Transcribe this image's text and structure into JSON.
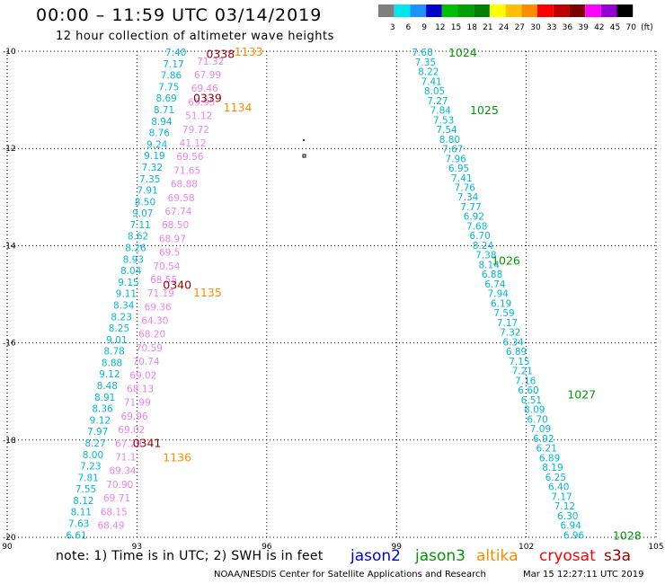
{
  "header": {
    "title": "00:00 – 11:59 UTC 03/14/2019",
    "subtitle": "12 hour collection of altimeter wave heights"
  },
  "legend": {
    "colors": [
      "#7f7f7f",
      "#00e5ee",
      "#1e90ff",
      "#0000cd",
      "#00c000",
      "#00a000",
      "#008000",
      "#ffff00",
      "#ffc000",
      "#ff8c00",
      "#ff0000",
      "#c00000",
      "#800000",
      "#ff00ff",
      "#9400d3",
      "#000000"
    ],
    "labels": [
      "3",
      "6",
      "9",
      "12",
      "15",
      "18",
      "21",
      "24",
      "27",
      "30",
      "33",
      "36",
      "39",
      "42",
      "45",
      "70",
      "(ft)"
    ]
  },
  "axes": {
    "lat_ticks": [
      "-10",
      "-12",
      "-14",
      "-16",
      "-18",
      "-20"
    ],
    "lon_ticks": [
      "90",
      "93",
      "96",
      "99",
      "102",
      "105"
    ]
  },
  "footer": {
    "note": "note:  1) Time is in UTC;  2) SWH is in feet",
    "satellites": [
      {
        "name": "jason2",
        "color": "#0000dd"
      },
      {
        "name": "jason3",
        "color": "#009900"
      },
      {
        "name": "altika",
        "color": "#ff8c00"
      },
      {
        "name": "cryosat",
        "color": "#ff0000"
      },
      {
        "name": "s3a",
        "color": "#990000"
      }
    ],
    "credit": "NOAA/NESDIS Center for Satellite Applications and Research",
    "timestamp": "Mar 15 12:27:11 UTC 2019"
  },
  "map_extent": {
    "lon_min": 90,
    "lon_max": 105,
    "lat_min": -20,
    "lat_max": -10
  },
  "tracks": [
    {
      "satellite": "s3a",
      "color": "#00b7d8",
      "values": [
        "7.40",
        "7.17",
        "7.86",
        "7.75",
        "8.69",
        "8.71",
        "8.94",
        "8.76",
        "9.24",
        "9.19",
        "7.32",
        "7.35",
        "7.91",
        "8.50",
        "9.07",
        "7.11",
        "8.62",
        "8.26",
        "8.93",
        "8.04",
        "9.15",
        "9.11",
        "8.34",
        "8.23",
        "8.25",
        "9.01",
        "8.78",
        "8.88",
        "9.12",
        "8.48",
        "8.91",
        "8.36",
        "9.12",
        "7.97",
        "8.27",
        "8.00",
        "7.23",
        "7.81",
        "7.55",
        "8.12",
        "8.11",
        "7.63",
        "6.61"
      ],
      "start": {
        "lon": 93.9,
        "lat": -10.02
      },
      "end": {
        "lon": 91.6,
        "lat": -19.95
      }
    },
    {
      "satellite": "cryosat",
      "color": "#ee82ee",
      "values": [
        "71.32",
        "67.99",
        "69.46",
        "69.95",
        "51.12",
        "79.72",
        "41.12",
        "69.56",
        "71.65",
        "68.88",
        "69.58",
        "67.74",
        "68.50",
        "68.97",
        "69.5",
        "70.54",
        "68.55",
        "71.19",
        "69.36",
        "64.30",
        "68.20",
        "70.59",
        "70.74",
        "69.02",
        "68.13",
        "71.99",
        "69.96",
        "69.02",
        "67.29",
        "71.1",
        "69.34",
        "70.90",
        "69.71",
        "68.15",
        "68.49"
      ],
      "start": {
        "lon": 94.7,
        "lat": -10.2
      },
      "end": {
        "lon": 92.4,
        "lat": -19.75
      }
    },
    {
      "satellite": "jason3",
      "color": "#00b7d8",
      "values": [
        "7.68",
        "7.35",
        "8.22",
        "7.41",
        "8.05",
        "7.27",
        "7.84",
        "7.53",
        "7.54",
        "8.80",
        "7.67",
        "7.96",
        "6.95",
        "7.41",
        "7.76",
        "7.34",
        "7.77",
        "6.92",
        "7.68",
        "6.70",
        "8.24",
        "7.38",
        "8.14",
        "6.88",
        "6.74",
        "7.94",
        "6.19",
        "7.59",
        "7.17",
        "7.32",
        "6.34",
        "6.89",
        "7.15",
        "7.21",
        "7.16",
        "6.60",
        "6.51",
        "8.09",
        "6.70",
        "7.09",
        "6.92",
        "6.21",
        "6.89",
        "8.19",
        "6.25",
        "6.40",
        "7.17",
        "7.12",
        "6.30",
        "6.94",
        "6.96"
      ],
      "start": {
        "lon": 99.6,
        "lat": -10.02
      },
      "end": {
        "lon": 103.1,
        "lat": -19.95
      }
    }
  ],
  "time_labels": [
    {
      "text": "0338",
      "satellite": "s3a",
      "lon": 94.6,
      "lat": -10.05
    },
    {
      "text": "1133",
      "satellite": "altika",
      "lon": 95.25,
      "lat": -10.0
    },
    {
      "text": "0339",
      "satellite": "s3a",
      "lon": 94.3,
      "lat": -10.95
    },
    {
      "text": "1134",
      "satellite": "altika",
      "lon": 95.0,
      "lat": -11.15
    },
    {
      "text": "0340",
      "satellite": "s3a",
      "lon": 93.6,
      "lat": -14.8
    },
    {
      "text": "1135",
      "satellite": "altika",
      "lon": 94.3,
      "lat": -14.95
    },
    {
      "text": "0341",
      "satellite": "s3a",
      "lon": 92.9,
      "lat": -18.05
    },
    {
      "text": "1136",
      "satellite": "altika",
      "lon": 93.6,
      "lat": -18.35
    },
    {
      "text": "1024",
      "satellite": "jason3",
      "lon": 100.2,
      "lat": -10.02
    },
    {
      "text": "1025",
      "satellite": "jason3",
      "lon": 100.7,
      "lat": -11.2
    },
    {
      "text": "1026",
      "satellite": "jason3",
      "lon": 101.2,
      "lat": -14.3
    },
    {
      "text": "1027",
      "satellite": "jason3",
      "lon": 102.95,
      "lat": -17.05
    },
    {
      "text": "1028",
      "satellite": "jason3",
      "lon": 104.0,
      "lat": -19.95
    }
  ]
}
